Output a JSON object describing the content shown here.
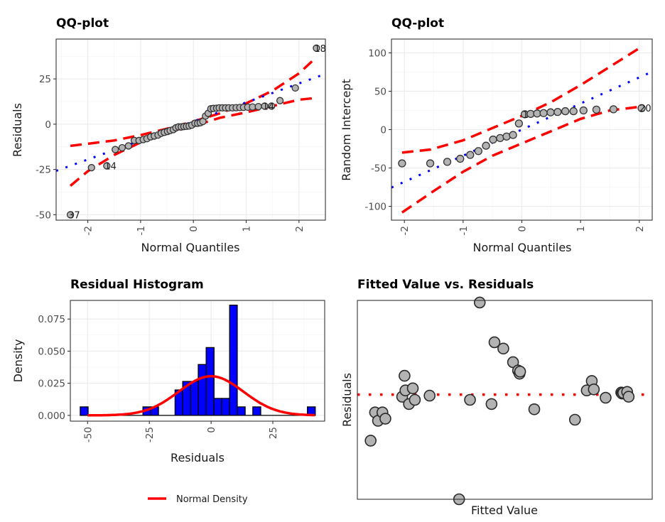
{
  "chart_data": [
    {
      "id": "qq_residuals",
      "type": "scatter",
      "title": "QQ-plot",
      "xlabel": "Normal Quantiles",
      "ylabel": "Residuals",
      "xlim": [
        -2.6,
        2.5
      ],
      "ylim": [
        -53,
        47
      ],
      "xticks": [
        -2,
        -1,
        0,
        1,
        2
      ],
      "xtick_labels": [
        "-2",
        "-1",
        "0",
        "1",
        "2"
      ],
      "yticks": [
        -50,
        -25,
        0,
        25
      ],
      "ytick_labels": [
        "-50",
        "-25",
        "0",
        "25"
      ],
      "grid": true,
      "points": {
        "x": [
          -2.33,
          -1.93,
          -1.64,
          -1.48,
          -1.35,
          -1.23,
          -1.12,
          -1.03,
          -0.95,
          -0.88,
          -0.81,
          -0.74,
          -0.67,
          -0.61,
          -0.55,
          -0.49,
          -0.44,
          -0.38,
          -0.33,
          -0.28,
          -0.23,
          -0.18,
          -0.13,
          -0.08,
          -0.03,
          0.03,
          0.08,
          0.13,
          0.18,
          0.23,
          0.28,
          0.33,
          0.38,
          0.44,
          0.49,
          0.55,
          0.61,
          0.67,
          0.74,
          0.81,
          0.88,
          0.95,
          1.03,
          1.12,
          1.23,
          1.35,
          1.48,
          1.64,
          1.93,
          2.33
        ],
        "y": [
          -50,
          -24,
          -23,
          -14,
          -13,
          -12,
          -9,
          -9,
          -8.5,
          -8,
          -7,
          -6.5,
          -6,
          -5,
          -4.5,
          -4,
          -3.5,
          -3,
          -2,
          -1.5,
          -1.5,
          -1.3,
          -1.2,
          -1,
          -0.5,
          0.5,
          0.5,
          0.8,
          1.5,
          4.5,
          6,
          8.5,
          8.7,
          8.8,
          9,
          9,
          9,
          9,
          9,
          9.1,
          9.2,
          9.3,
          9.4,
          9.5,
          9.7,
          10,
          10,
          13,
          20,
          42
        ]
      },
      "point_labels": [
        {
          "x": -2.33,
          "y": -50,
          "text": "37"
        },
        {
          "x": -1.64,
          "y": -23,
          "text": "14"
        },
        {
          "x": 1.35,
          "y": 10,
          "text": "14"
        },
        {
          "x": 2.33,
          "y": 42,
          "text": "18"
        }
      ],
      "reference_line": {
        "intercept": 1.5,
        "slope": 10.5,
        "style": "dotted",
        "color": "#0000ff"
      },
      "band_upper": {
        "x": [
          -2.33,
          -1.5,
          -1.0,
          -0.5,
          0,
          0.5,
          1.0,
          1.5,
          2.0,
          2.33
        ],
        "y": [
          -12,
          -9,
          -6,
          -2.5,
          1.5,
          6,
          11.5,
          18.5,
          28,
          37
        ]
      },
      "band_lower": {
        "x": [
          -2.33,
          -2.0,
          -1.5,
          -1.0,
          -0.5,
          0,
          0.5,
          1.0,
          1.5,
          2.0,
          2.33
        ],
        "y": [
          -34,
          -26,
          -17,
          -10,
          -5,
          -1,
          3.5,
          6.5,
          10,
          13.5,
          14.5
        ]
      }
    },
    {
      "id": "qq_random_intercept",
      "type": "scatter",
      "title": "QQ-plot",
      "xlabel": "Normal Quantiles",
      "ylabel": "Random Intercept",
      "xlim": [
        -2.22,
        2.22
      ],
      "ylim": [
        -118,
        118
      ],
      "xticks": [
        -2,
        -1,
        0,
        1,
        2
      ],
      "xtick_labels": [
        "-2",
        "-1",
        "0",
        "1",
        "2"
      ],
      "yticks": [
        -100,
        -50,
        0,
        50,
        100
      ],
      "ytick_labels": [
        "-100",
        "-50",
        "0",
        "50",
        "100"
      ],
      "grid": true,
      "points": {
        "x": [
          -2.04,
          -1.56,
          -1.27,
          -1.05,
          -0.88,
          -0.74,
          -0.61,
          -0.49,
          -0.37,
          -0.26,
          -0.15,
          -0.05,
          0.05,
          0.15,
          0.26,
          0.37,
          0.49,
          0.61,
          0.74,
          0.88,
          1.05,
          1.27,
          1.56,
          2.04
        ],
        "y": [
          -44,
          -44,
          -42,
          -38,
          -33,
          -28,
          -21,
          -13,
          -11,
          -9,
          -7,
          8,
          20,
          20.5,
          21,
          21.5,
          22.5,
          23,
          24,
          24,
          25,
          26,
          26.5,
          28
        ]
      },
      "point_labels": [
        {
          "x": 0.05,
          "y": 20,
          "text": "1"
        },
        {
          "x": 2.04,
          "y": 28,
          "text": "20"
        }
      ],
      "reference_line": {
        "intercept": 0,
        "slope": 34,
        "style": "dotted",
        "color": "#0000ff"
      },
      "band_upper": {
        "x": [
          -2.04,
          -1.56,
          -1.0,
          -0.5,
          0,
          0.5,
          1.0,
          1.5,
          2.04
        ],
        "y": [
          -30,
          -26,
          -14,
          2,
          18,
          36,
          58,
          82,
          108
        ]
      },
      "band_lower": {
        "x": [
          -2.04,
          -1.5,
          -1.0,
          -0.5,
          0,
          0.5,
          1.0,
          1.5,
          2.04
        ],
        "y": [
          -108,
          -80,
          -55,
          -34,
          -18,
          -2,
          14,
          25,
          30
        ]
      }
    },
    {
      "id": "residual_histogram",
      "type": "bar",
      "title": "Residual Histogram",
      "xlabel": "Residuals",
      "ylabel": "Density",
      "xlim": [
        -57,
        46
      ],
      "ylim": [
        -0.0045,
        0.0895
      ],
      "xticks": [
        -50,
        -25,
        0,
        25
      ],
      "xtick_labels": [
        "-50",
        "-25",
        "0",
        "25"
      ],
      "yticks": [
        0,
        0.025,
        0.05,
        0.075
      ],
      "ytick_labels": [
        "0.000",
        "0.025",
        "0.050",
        "0.075"
      ],
      "grid": true,
      "bins": [
        {
          "x0": -53.0,
          "x1": -49.8,
          "density": 0.0066
        },
        {
          "x0": -49.8,
          "x1": -27.6,
          "density": 0.0
        },
        {
          "x0": -27.6,
          "x1": -24.4,
          "density": 0.0066
        },
        {
          "x0": -24.4,
          "x1": -21.3,
          "density": 0.0066
        },
        {
          "x0": -21.3,
          "x1": -14.6,
          "density": 0.0
        },
        {
          "x0": -14.6,
          "x1": -11.5,
          "density": 0.0198
        },
        {
          "x0": -11.5,
          "x1": -8.3,
          "density": 0.0264
        },
        {
          "x0": -8.3,
          "x1": -5.2,
          "density": 0.0264
        },
        {
          "x0": -5.2,
          "x1": -2.0,
          "density": 0.0396
        },
        {
          "x0": -2.0,
          "x1": 1.2,
          "density": 0.0528
        },
        {
          "x0": 1.2,
          "x1": 4.3,
          "density": 0.0132
        },
        {
          "x0": 4.3,
          "x1": 7.5,
          "density": 0.0132
        },
        {
          "x0": 7.5,
          "x1": 10.6,
          "density": 0.0858
        },
        {
          "x0": 10.6,
          "x1": 13.8,
          "density": 0.0066
        },
        {
          "x0": 13.8,
          "x1": 16.9,
          "density": 0.0
        },
        {
          "x0": 16.9,
          "x1": 20.1,
          "density": 0.0066
        },
        {
          "x0": 20.1,
          "x1": 39.0,
          "density": 0.0
        },
        {
          "x0": 39.0,
          "x1": 42.2,
          "density": 0.0066
        }
      ],
      "normal_curve": {
        "mean": 0,
        "sd": 13.1,
        "x_range": [
          -50,
          42
        ],
        "color": "#ff0000"
      },
      "legend": {
        "entries": [
          "Normal Density"
        ],
        "position": "bottom"
      }
    },
    {
      "id": "fitted_vs_residuals",
      "type": "scatter",
      "title": "Fitted Value vs. Residuals",
      "xlabel": "Fitted Value",
      "ylabel": "Residuals",
      "xlim": [
        0,
        100
      ],
      "ylim": [
        -50,
        45
      ],
      "grid": false,
      "axis_ticks_shown": false,
      "hline": {
        "y": 0,
        "style": "dotted",
        "color": "#ff0000"
      },
      "points": {
        "x": [
          4.5,
          6.0,
          7.0,
          8.5,
          9.5,
          15.2,
          16.0,
          16.3,
          17.5,
          18.8,
          19.5,
          24.5,
          34.5,
          38.2,
          41.5,
          45.5,
          46.5,
          49.5,
          52.8,
          54.5,
          55.0,
          55.2,
          60.0,
          73.8,
          77.8,
          79.5,
          80.2,
          84.2,
          89.5,
          89.8,
          90.2,
          91.5,
          92.0
        ],
        "y": [
          -22,
          -8.5,
          -12.5,
          -8.5,
          -11.5,
          -1,
          9,
          2,
          -4.5,
          3.0,
          -2.5,
          -0.5,
          -50,
          -2.5,
          44,
          -4.5,
          25,
          22,
          15.5,
          11.5,
          10,
          11,
          -7,
          -12,
          2,
          6.5,
          2.5,
          -1.5,
          1,
          0.5,
          0.8,
          1.3,
          -1
        ]
      }
    }
  ],
  "legend_label": "Normal Density"
}
